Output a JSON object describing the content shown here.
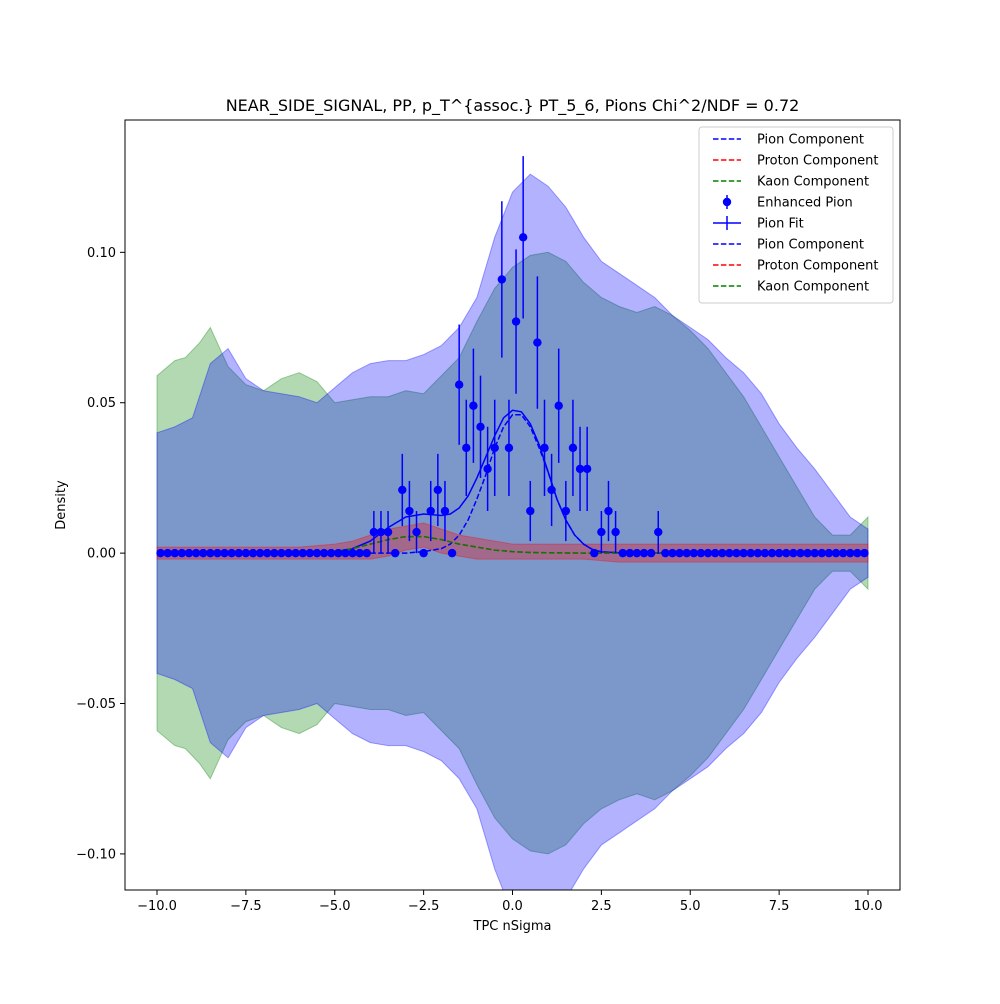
{
  "chart_data": {
    "type": "scatter",
    "title": "NEAR_SIDE_SIGNAL, PP, p_T^{assoc.} PT_5_6, Pions Chi^2/NDF = 0.72",
    "xlabel": "TPC nSigma",
    "ylabel": "Density",
    "xlim": [
      -10.9,
      10.9
    ],
    "ylim": [
      -0.112,
      0.144
    ],
    "grid": false,
    "legend_position": "top-right",
    "x_ticks": [
      -10.0,
      -7.5,
      -5.0,
      -2.5,
      0.0,
      2.5,
      5.0,
      7.5,
      10.0
    ],
    "x_tick_labels": [
      "−10.0",
      "−7.5",
      "−5.0",
      "−2.5",
      "0.0",
      "2.5",
      "5.0",
      "7.5",
      "10.0"
    ],
    "y_ticks": [
      -0.1,
      -0.05,
      0.0,
      0.05,
      0.1
    ],
    "y_tick_labels": [
      "−0.10",
      "−0.05",
      "0.00",
      "0.05",
      "0.10"
    ],
    "legend": [
      {
        "label": "Pion Component",
        "kind": "dashed",
        "color": "#0000ff"
      },
      {
        "label": "Proton Component",
        "kind": "dashed",
        "color": "#ff0000"
      },
      {
        "label": "Kaon Component",
        "kind": "dashed",
        "color": "#008000"
      },
      {
        "label": "Enhanced Pion",
        "kind": "errorpoint",
        "color": "#0000ff"
      },
      {
        "label": "Pion Fit",
        "kind": "errorline",
        "color": "#0000ff"
      },
      {
        "label": "Pion Component",
        "kind": "dashed",
        "color": "#0000ff"
      },
      {
        "label": "Proton Component",
        "kind": "dashed",
        "color": "#ff0000"
      },
      {
        "label": "Kaon Component",
        "kind": "dashed",
        "color": "#008000"
      }
    ],
    "bands": [
      {
        "name": "green band",
        "color": "#008000",
        "alpha": 0.3,
        "x": [
          -10,
          -9.5,
          -9.2,
          -8.8,
          -8.5,
          -8.0,
          -7.5,
          -7.0,
          -6.5,
          -6.0,
          -5.5,
          -5.0,
          -4.5,
          -4.0,
          -3.5,
          -3.0,
          -2.5,
          -2.0,
          -1.5,
          -1.0,
          -0.5,
          0.0,
          0.5,
          1.0,
          1.5,
          2.0,
          2.5,
          3.0,
          3.5,
          4.0,
          4.5,
          5.0,
          5.5,
          6.0,
          6.5,
          7.0,
          7.5,
          8.0,
          8.5,
          9.0,
          9.5,
          10.0
        ],
        "upper": [
          0.059,
          0.064,
          0.065,
          0.07,
          0.075,
          0.062,
          0.056,
          0.054,
          0.058,
          0.06,
          0.057,
          0.05,
          0.051,
          0.052,
          0.052,
          0.054,
          0.053,
          0.059,
          0.065,
          0.077,
          0.088,
          0.095,
          0.099,
          0.1,
          0.097,
          0.09,
          0.085,
          0.082,
          0.08,
          0.082,
          0.079,
          0.074,
          0.068,
          0.06,
          0.052,
          0.042,
          0.032,
          0.022,
          0.012,
          0.006,
          0.006,
          0.012
        ],
        "lower": [
          -0.059,
          -0.064,
          -0.065,
          -0.07,
          -0.075,
          -0.062,
          -0.056,
          -0.054,
          -0.058,
          -0.06,
          -0.057,
          -0.05,
          -0.051,
          -0.052,
          -0.052,
          -0.054,
          -0.053,
          -0.059,
          -0.065,
          -0.077,
          -0.088,
          -0.095,
          -0.099,
          -0.1,
          -0.097,
          -0.09,
          -0.085,
          -0.082,
          -0.08,
          -0.082,
          -0.079,
          -0.074,
          -0.068,
          -0.06,
          -0.052,
          -0.042,
          -0.032,
          -0.022,
          -0.012,
          -0.006,
          -0.006,
          -0.012
        ]
      },
      {
        "name": "blue band",
        "color": "#0000ff",
        "alpha": 0.3,
        "x": [
          -10,
          -9.5,
          -9.0,
          -8.5,
          -8.0,
          -7.5,
          -7.0,
          -6.5,
          -6.0,
          -5.5,
          -5.0,
          -4.5,
          -4.0,
          -3.5,
          -3.0,
          -2.5,
          -2.0,
          -1.5,
          -1.0,
          -0.5,
          0.0,
          0.5,
          1.0,
          1.5,
          2.0,
          2.5,
          3.0,
          3.5,
          4.0,
          4.5,
          5.0,
          5.5,
          6.0,
          6.5,
          7.0,
          7.5,
          8.0,
          8.5,
          9.0,
          9.5,
          10.0
        ],
        "upper": [
          0.04,
          0.042,
          0.045,
          0.063,
          0.068,
          0.058,
          0.054,
          0.053,
          0.052,
          0.05,
          0.055,
          0.06,
          0.063,
          0.064,
          0.064,
          0.066,
          0.069,
          0.075,
          0.085,
          0.105,
          0.12,
          0.126,
          0.122,
          0.115,
          0.105,
          0.097,
          0.093,
          0.089,
          0.085,
          0.079,
          0.075,
          0.071,
          0.065,
          0.06,
          0.053,
          0.043,
          0.035,
          0.028,
          0.02,
          0.012,
          0.008
        ],
        "lower": [
          -0.04,
          -0.042,
          -0.045,
          -0.063,
          -0.068,
          -0.058,
          -0.054,
          -0.053,
          -0.052,
          -0.05,
          -0.055,
          -0.06,
          -0.063,
          -0.064,
          -0.064,
          -0.066,
          -0.069,
          -0.075,
          -0.085,
          -0.105,
          -0.12,
          -0.126,
          -0.122,
          -0.115,
          -0.105,
          -0.097,
          -0.093,
          -0.089,
          -0.085,
          -0.079,
          -0.075,
          -0.071,
          -0.065,
          -0.06,
          -0.053,
          -0.043,
          -0.035,
          -0.028,
          -0.02,
          -0.012,
          -0.008
        ]
      },
      {
        "name": "red band",
        "color": "#ff0000",
        "alpha": 0.3,
        "x": [
          -10,
          -8.0,
          -6.0,
          -5.0,
          -4.5,
          -4.0,
          -3.5,
          -3.0,
          -2.5,
          -2.0,
          -1.5,
          -1.0,
          -0.5,
          0.0,
          1.0,
          2.0,
          3.0,
          4.0,
          5.0,
          6.0,
          7.0,
          8.0,
          9.0,
          10.0
        ],
        "upper": [
          0.002,
          0.002,
          0.002,
          0.003,
          0.004,
          0.006,
          0.008,
          0.009,
          0.01,
          0.008,
          0.006,
          0.005,
          0.004,
          0.003,
          0.003,
          0.003,
          0.003,
          0.003,
          0.003,
          0.003,
          0.003,
          0.003,
          0.003,
          0.003
        ],
        "lower": [
          -0.002,
          -0.002,
          -0.002,
          -0.002,
          -0.002,
          -0.002,
          -0.001,
          0.001,
          0.002,
          0.0,
          -0.001,
          -0.002,
          -0.002,
          -0.002,
          -0.002,
          -0.002,
          -0.003,
          -0.003,
          -0.003,
          -0.003,
          -0.003,
          -0.003,
          -0.003,
          -0.003
        ]
      }
    ],
    "series": [
      {
        "name": "Enhanced Pion",
        "kind": "errorbar",
        "color": "#0000ff",
        "x": [
          -9.9,
          -9.7,
          -9.5,
          -9.3,
          -9.1,
          -8.9,
          -8.7,
          -8.5,
          -8.3,
          -8.1,
          -7.9,
          -7.7,
          -7.5,
          -7.3,
          -7.1,
          -6.9,
          -6.7,
          -6.5,
          -6.3,
          -6.1,
          -5.9,
          -5.7,
          -5.5,
          -5.3,
          -5.1,
          -4.9,
          -4.7,
          -4.5,
          -4.3,
          -4.1,
          -3.9,
          -3.7,
          -3.5,
          -3.3,
          -3.1,
          -2.9,
          -2.7,
          -2.5,
          -2.3,
          -2.1,
          -1.9,
          -1.7,
          -1.5,
          -1.3,
          -1.1,
          -0.9,
          -0.7,
          -0.5,
          -0.3,
          -0.1,
          0.1,
          0.3,
          0.5,
          0.7,
          0.9,
          1.1,
          1.3,
          1.5,
          1.7,
          1.9,
          2.1,
          2.3,
          2.5,
          2.7,
          2.9,
          3.1,
          3.3,
          3.5,
          3.7,
          3.9,
          4.1,
          4.3,
          4.5,
          4.7,
          4.9,
          5.1,
          5.3,
          5.5,
          5.7,
          5.9,
          6.1,
          6.3,
          6.5,
          6.7,
          6.9,
          7.1,
          7.3,
          7.5,
          7.7,
          7.9,
          8.1,
          8.3,
          8.5,
          8.7,
          8.9,
          9.1,
          9.3,
          9.5,
          9.7,
          9.9
        ],
        "y": [
          0,
          0,
          0,
          0,
          0,
          0,
          0,
          0,
          0,
          0,
          0,
          0,
          0,
          0,
          0,
          0,
          0,
          0,
          0,
          0,
          0,
          0,
          0,
          0,
          0,
          0,
          0,
          0,
          0,
          0,
          0.007,
          0.007,
          0.007,
          0,
          0.021,
          0.014,
          0.007,
          0,
          0.014,
          0.021,
          0.014,
          0,
          0.056,
          0.035,
          0.049,
          0.042,
          0.028,
          0.035,
          0.091,
          0.035,
          0.077,
          0.105,
          0.014,
          0.07,
          0.035,
          0.021,
          0.049,
          0.014,
          0.035,
          0.028,
          0.028,
          0,
          0.007,
          0.014,
          0.007,
          0,
          0,
          0,
          0,
          0,
          0.007,
          0,
          0,
          0,
          0,
          0,
          0,
          0,
          0,
          0,
          0,
          0,
          0,
          0,
          0,
          0,
          0,
          0,
          0,
          0,
          0,
          0,
          0,
          0,
          0,
          0,
          0,
          0,
          0,
          0
        ],
        "yerr": [
          0,
          0,
          0,
          0,
          0,
          0,
          0,
          0,
          0,
          0,
          0,
          0,
          0,
          0,
          0,
          0,
          0,
          0,
          0,
          0,
          0,
          0,
          0,
          0,
          0,
          0,
          0,
          0,
          0,
          0,
          0.007,
          0.007,
          0.007,
          0,
          0.012,
          0.01,
          0.007,
          0,
          0.01,
          0.012,
          0.01,
          0,
          0.02,
          0.016,
          0.019,
          0.017,
          0.014,
          0.016,
          0.026,
          0.016,
          0.024,
          0.027,
          0.01,
          0.022,
          0.016,
          0.012,
          0.019,
          0.01,
          0.016,
          0.014,
          0.014,
          0,
          0.007,
          0.01,
          0.007,
          0,
          0,
          0,
          0,
          0,
          0.007,
          0,
          0,
          0,
          0,
          0,
          0,
          0,
          0,
          0,
          0,
          0,
          0,
          0,
          0,
          0,
          0,
          0,
          0,
          0,
          0,
          0,
          0,
          0,
          0,
          0,
          0,
          0,
          0,
          0
        ]
      },
      {
        "name": "Pion Fit",
        "kind": "line",
        "color": "#0000ff",
        "x": [
          -10,
          -6,
          -5,
          -4.5,
          -4,
          -3.5,
          -3,
          -2.5,
          -2,
          -1.75,
          -1.5,
          -1.25,
          -1,
          -0.75,
          -0.5,
          -0.25,
          0,
          0.25,
          0.5,
          0.75,
          1,
          1.25,
          1.5,
          1.75,
          2,
          2.25,
          2.5,
          3,
          4,
          10
        ],
        "y": [
          0,
          0,
          0.0005,
          0.0015,
          0.004,
          0.0085,
          0.012,
          0.013,
          0.0125,
          0.013,
          0.015,
          0.019,
          0.025,
          0.032,
          0.039,
          0.045,
          0.0475,
          0.047,
          0.043,
          0.036,
          0.027,
          0.018,
          0.011,
          0.006,
          0.003,
          0.0012,
          0.0004,
          0.0001,
          0,
          0
        ]
      },
      {
        "name": "Pion Component",
        "kind": "dashed",
        "color": "#0000ff",
        "x": [
          -10,
          -3,
          -2.5,
          -2,
          -1.75,
          -1.5,
          -1.25,
          -1,
          -0.75,
          -0.5,
          -0.25,
          0,
          0.25,
          0.5,
          0.75,
          1,
          1.25,
          1.5,
          1.75,
          2,
          2.25,
          2.5,
          3,
          10
        ],
        "y": [
          0,
          0,
          0.0005,
          0.0015,
          0.003,
          0.006,
          0.011,
          0.018,
          0.026,
          0.035,
          0.042,
          0.046,
          0.046,
          0.042,
          0.035,
          0.027,
          0.018,
          0.011,
          0.006,
          0.003,
          0.0012,
          0.0004,
          0.0001,
          0
        ]
      },
      {
        "name": "Proton Component",
        "kind": "dashed",
        "color": "#ff0000",
        "x": [
          -10,
          -6,
          -5,
          -4.5,
          -4,
          -3.5,
          -3,
          -2.5,
          -2,
          -1.5,
          -1,
          -0.5,
          0,
          0.5,
          1,
          2,
          3,
          10
        ],
        "y": [
          0,
          0,
          0.0005,
          0.0015,
          0.003,
          0.0045,
          0.0055,
          0.0055,
          0.0045,
          0.003,
          0.002,
          0.001,
          0.0005,
          0.0002,
          0.0001,
          0,
          0,
          0
        ]
      },
      {
        "name": "Kaon Component",
        "kind": "dashed",
        "color": "#008000",
        "x": [
          -10,
          -6,
          -5,
          -4.5,
          -4,
          -3.5,
          -3,
          -2.5,
          -2,
          -1.5,
          -1,
          -0.5,
          0,
          0.5,
          1,
          2,
          3,
          10
        ],
        "y": [
          0,
          0,
          0.0005,
          0.0015,
          0.003,
          0.0045,
          0.0055,
          0.0055,
          0.0045,
          0.003,
          0.002,
          0.001,
          0.0005,
          0.0002,
          0.0001,
          0,
          0,
          0
        ]
      }
    ]
  }
}
